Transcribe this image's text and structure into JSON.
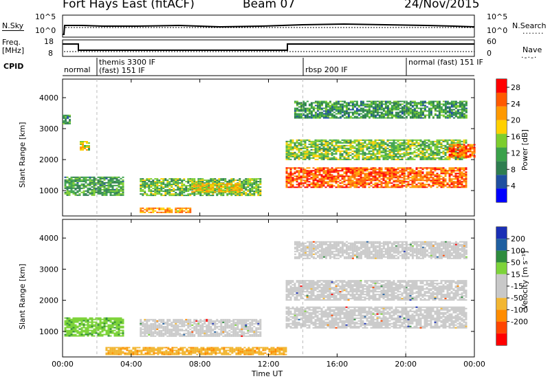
{
  "header": {
    "station": "Fort Hays East (fitACF)",
    "beam": "Beam 07",
    "date": "24/Nov/2015"
  },
  "strip_panels": {
    "sky": {
      "left_label": "N.Sky",
      "right_label": "N.Search",
      "left_ticks": [
        "10^5",
        "10^0"
      ],
      "right_ticks": [
        "10^5",
        "10^0"
      ]
    },
    "freq": {
      "left_label_1": "Freq.",
      "left_label_2": "[MHz]",
      "right_label": "Nave",
      "left_ticks": [
        "18",
        "8"
      ],
      "right_ticks": [
        "60",
        "0"
      ]
    },
    "cpid": {
      "label": "CPID",
      "segments": [
        "normal",
        "themis 3300 IF",
        "(fast) 151 IF",
        "rbsp 200 IF",
        "normal (fast) 151 IF"
      ]
    }
  },
  "colors": {
    "power": [
      "#0000ff",
      "#1f4fa0",
      "#2e7d4f",
      "#3aa14a",
      "#7ccd2e",
      "#ffd000",
      "#ff9900",
      "#ff5a00",
      "#ff0000"
    ],
    "velocity": [
      "#1a2fb5",
      "#1f5fa0",
      "#2e8b3e",
      "#7dd33a",
      "#c8c8c8",
      "#c8c8c8",
      "#f2b632",
      "#ff8c00",
      "#ff4500",
      "#ff0000"
    ],
    "ground_scatter": "#c8c8c8"
  },
  "chart_data": [
    {
      "type": "heatmap",
      "name": "power-panel",
      "xlabel": "",
      "ylabel": "Slant Range [km]",
      "xlim": [
        0,
        24
      ],
      "ylim": [
        180,
        4600
      ],
      "y_ticks": [
        "1000",
        "2000",
        "3000",
        "4000"
      ],
      "colorbar": {
        "label": "Power [dB]",
        "ticks": [
          "4",
          "8",
          "12",
          "16",
          "20",
          "24",
          "28"
        ],
        "range": [
          0,
          30
        ]
      },
      "cpid_markers_h": [
        2.0,
        14.0,
        20.0
      ],
      "regions": [
        {
          "t0": 0.0,
          "t1": 0.4,
          "r0": 3150,
          "r1": 3450,
          "level": 10
        },
        {
          "t0": 1.0,
          "t1": 1.5,
          "r0": 2300,
          "r1": 2600,
          "level": 18
        },
        {
          "t0": 0.1,
          "t1": 3.5,
          "r0": 850,
          "r1": 1450,
          "level": 11
        },
        {
          "t0": 4.5,
          "t1": 11.5,
          "r0": 850,
          "r1": 1400,
          "level": 13
        },
        {
          "t0": 7.5,
          "t1": 10.5,
          "r0": 950,
          "r1": 1250,
          "level": 19
        },
        {
          "t0": 4.5,
          "t1": 7.5,
          "r0": 300,
          "r1": 450,
          "level": 22
        },
        {
          "t0": 13.0,
          "t1": 23.5,
          "r0": 1100,
          "r1": 1750,
          "level": 26
        },
        {
          "t0": 13.0,
          "t1": 23.5,
          "r0": 2000,
          "r1": 2650,
          "level": 14
        },
        {
          "t0": 22.5,
          "t1": 24.0,
          "r0": 2100,
          "r1": 2500,
          "level": 25
        },
        {
          "t0": 13.5,
          "t1": 23.5,
          "r0": 3350,
          "r1": 3900,
          "level": 10
        }
      ]
    },
    {
      "type": "heatmap",
      "name": "velocity-panel",
      "xlabel": "Time UT",
      "ylabel": "Slant Range [km]",
      "xlim": [
        0,
        24
      ],
      "ylim": [
        180,
        4600
      ],
      "x_ticks": [
        "00:00",
        "04:00",
        "08:00",
        "12:00",
        "16:00",
        "20:00",
        "00:00"
      ],
      "y_ticks": [
        "1000",
        "2000",
        "3000",
        "4000"
      ],
      "colorbar": {
        "label": "Velocity [m s⁻¹]",
        "ticks": [
          "200",
          "100",
          "50",
          "15",
          "-15",
          "-50",
          "-100",
          "-200"
        ]
      },
      "regions": [
        {
          "t0": 0.1,
          "t1": 3.5,
          "r0": 850,
          "r1": 1450,
          "class": "toward"
        },
        {
          "t0": 4.5,
          "t1": 11.5,
          "r0": 850,
          "r1": 1400,
          "class": "ground"
        },
        {
          "t0": 2.5,
          "t1": 13.0,
          "r0": 250,
          "r1": 500,
          "class": "away"
        },
        {
          "t0": 13.0,
          "t1": 23.5,
          "r0": 1100,
          "r1": 1800,
          "class": "ground"
        },
        {
          "t0": 13.0,
          "t1": 23.5,
          "r0": 2000,
          "r1": 2650,
          "class": "ground"
        },
        {
          "t0": 13.5,
          "t1": 23.5,
          "r0": 3350,
          "r1": 3900,
          "class": "ground"
        }
      ]
    }
  ]
}
